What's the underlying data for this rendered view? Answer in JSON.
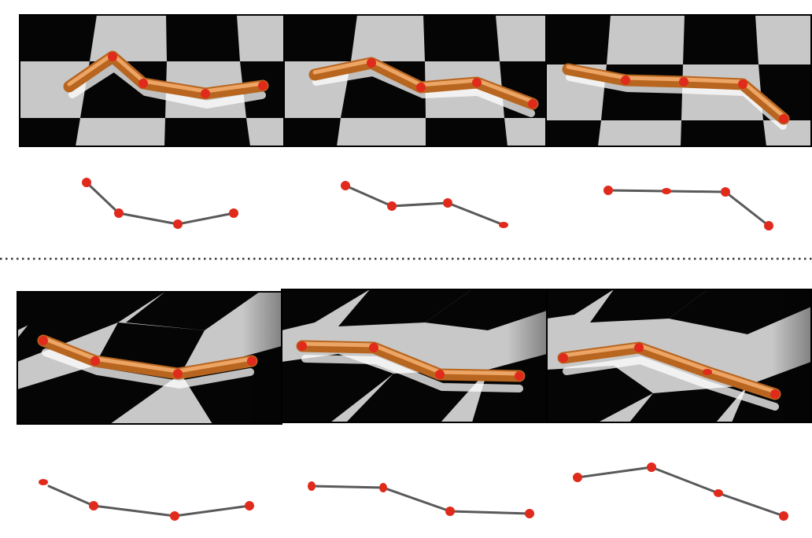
{
  "figure": {
    "description_free": true,
    "colors": {
      "rod": "#b8651f",
      "rod_highlight": "#f4b072",
      "joint": "#e02a1c",
      "skeleton": "#595959",
      "board_light": "#c8c8c8",
      "board_dark": "#050505",
      "divider": "#333333"
    },
    "rows": [
      {
        "name": "top-row",
        "view": "overhead",
        "panel_count": 3
      },
      {
        "name": "bottom-row",
        "view": "oblique",
        "panel_count": 3
      }
    ],
    "separator": "dotted"
  }
}
